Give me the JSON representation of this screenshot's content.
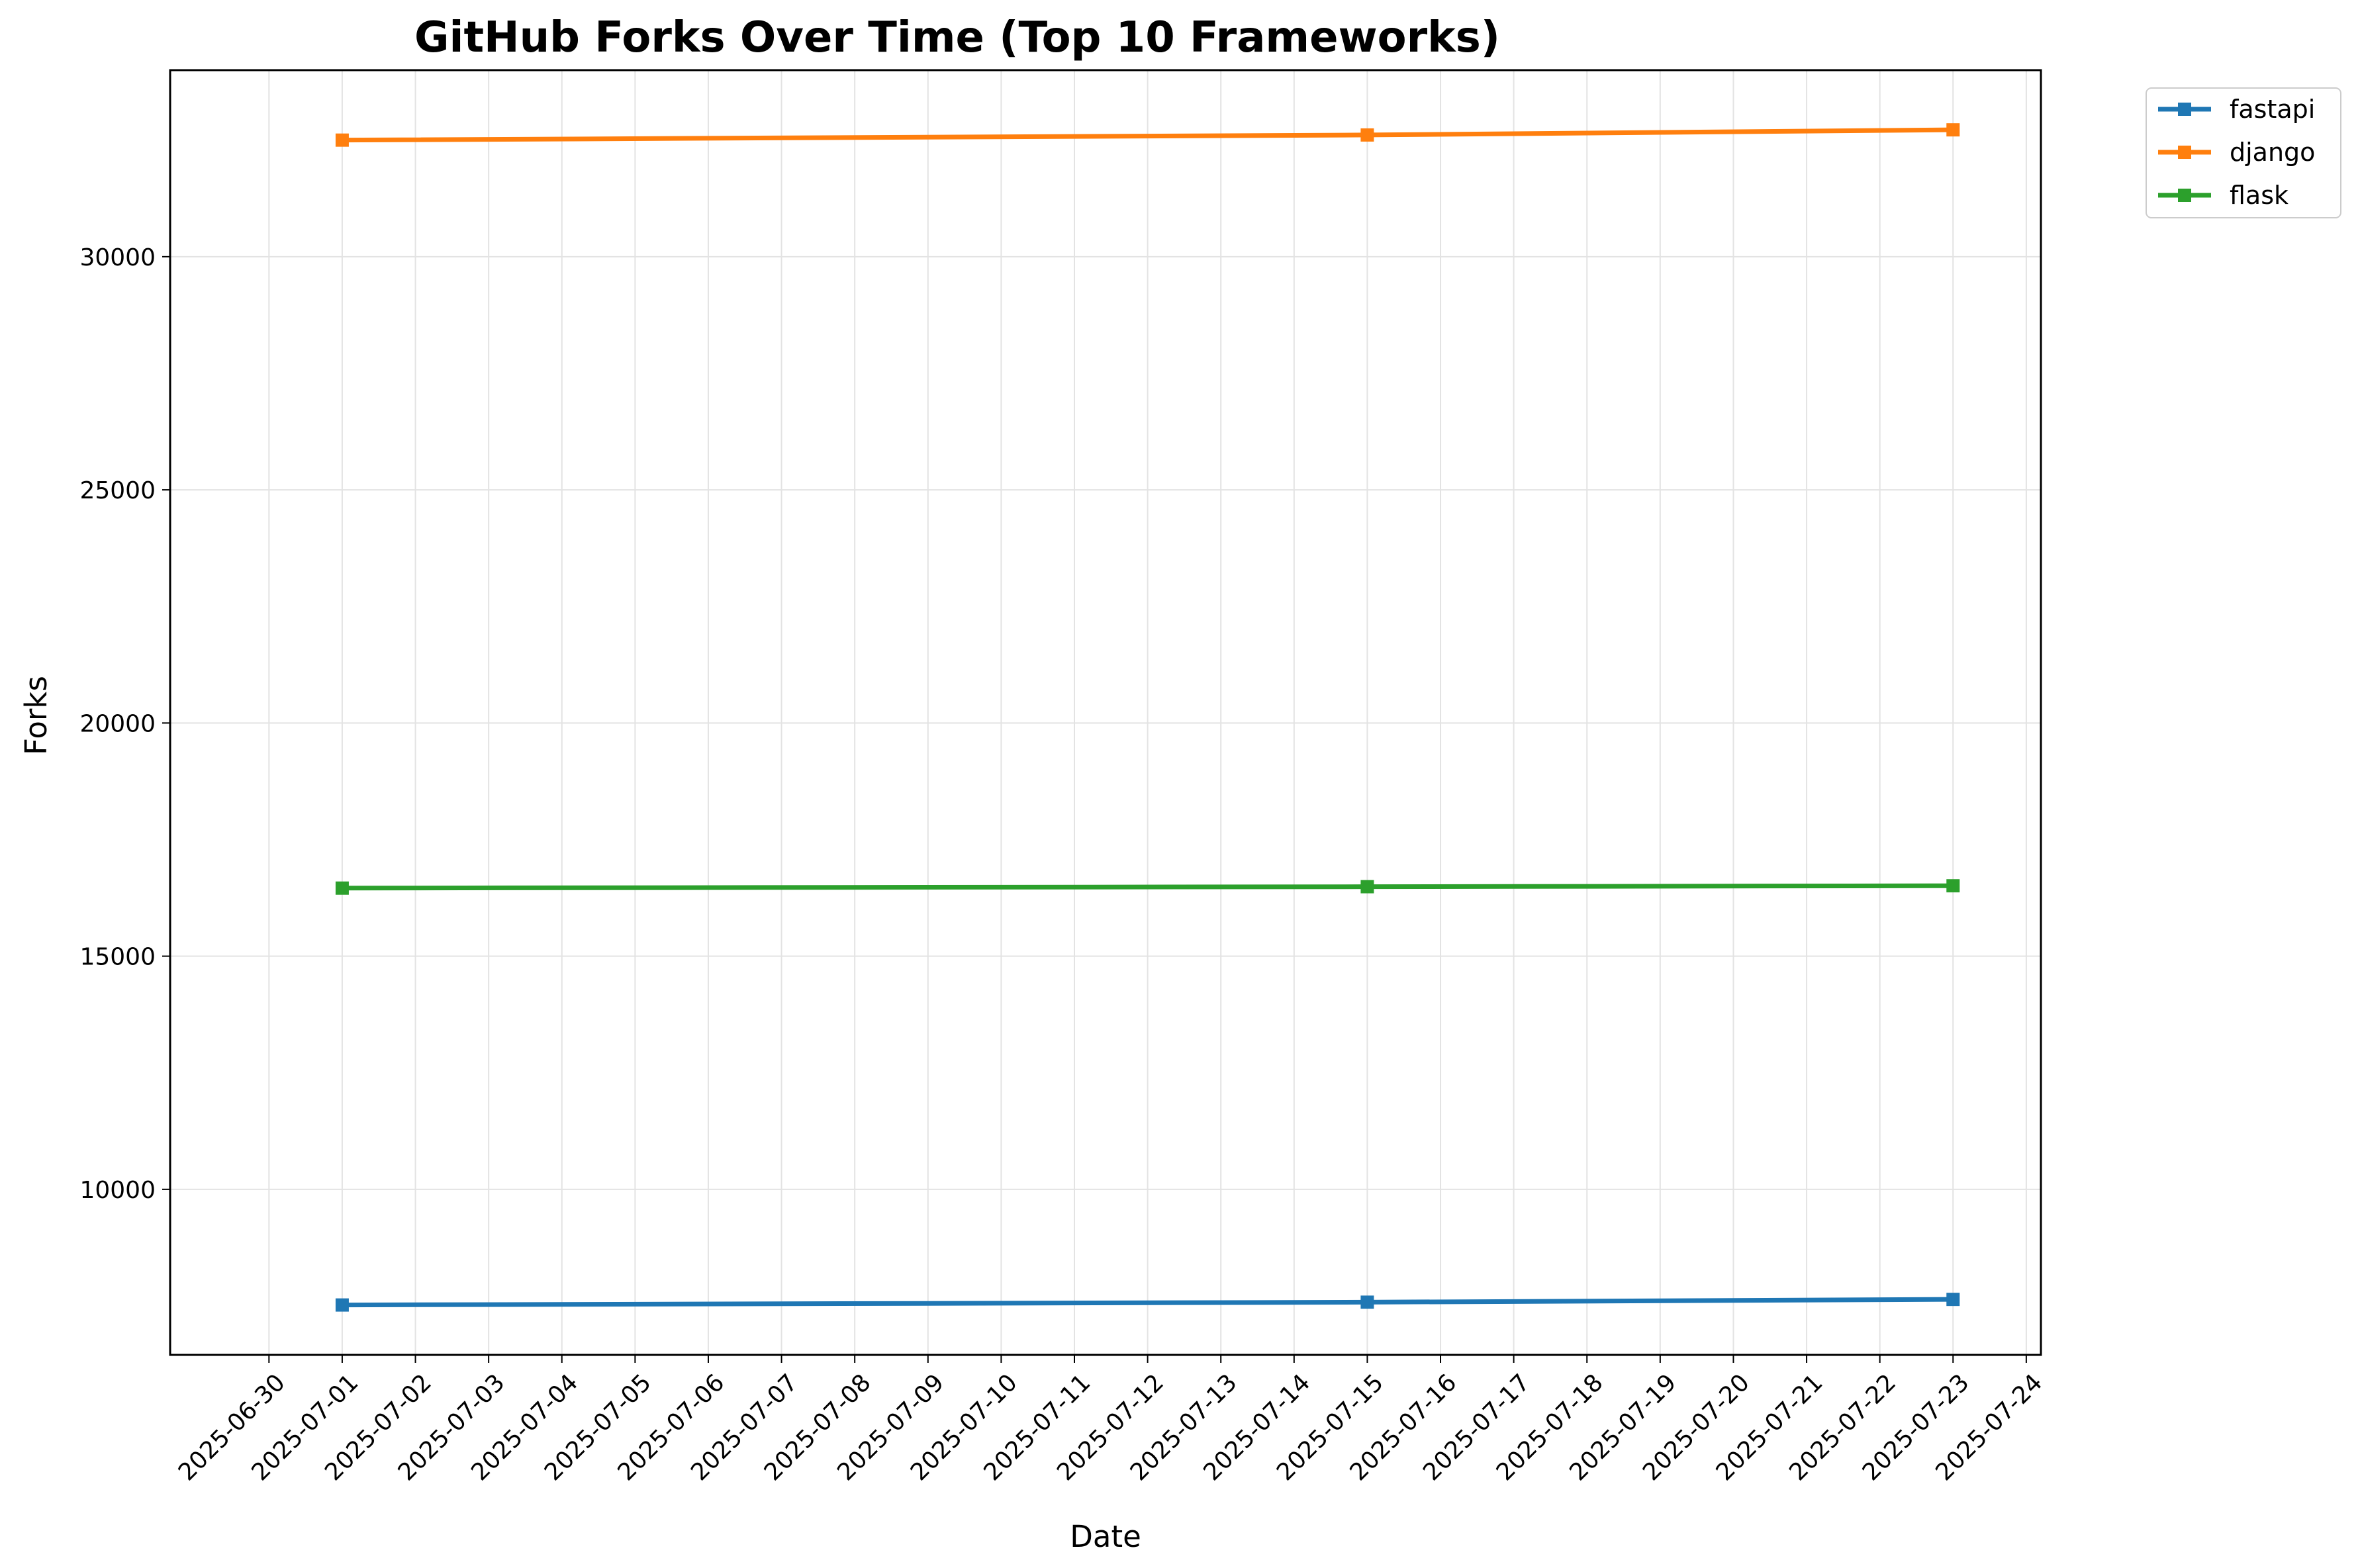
{
  "chart_data": {
    "type": "line",
    "title": "GitHub Forks Over Time (Top 10 Frameworks)",
    "xlabel": "Date",
    "ylabel": "Forks",
    "x_ticks": [
      "2025-06-30",
      "2025-07-01",
      "2025-07-02",
      "2025-07-03",
      "2025-07-04",
      "2025-07-05",
      "2025-07-06",
      "2025-07-07",
      "2025-07-08",
      "2025-07-09",
      "2025-07-10",
      "2025-07-11",
      "2025-07-12",
      "2025-07-13",
      "2025-07-14",
      "2025-07-15",
      "2025-07-16",
      "2025-07-17",
      "2025-07-18",
      "2025-07-19",
      "2025-07-20",
      "2025-07-21",
      "2025-07-22",
      "2025-07-23",
      "2025-07-24"
    ],
    "x": [
      "2025-07-01",
      "2025-07-15",
      "2025-07-23"
    ],
    "y_ticks": [
      10000,
      15000,
      20000,
      25000,
      30000
    ],
    "ylim": [
      6450,
      34000
    ],
    "grid": true,
    "legend_position": "outside-top-right",
    "series": [
      {
        "name": "fastapi",
        "color": "#1f77b4",
        "values": [
          7520,
          7580,
          7640
        ]
      },
      {
        "name": "django",
        "color": "#ff7f0e",
        "values": [
          32500,
          32610,
          32720
        ]
      },
      {
        "name": "flask",
        "color": "#2ca02c",
        "values": [
          16460,
          16490,
          16510
        ]
      }
    ]
  }
}
